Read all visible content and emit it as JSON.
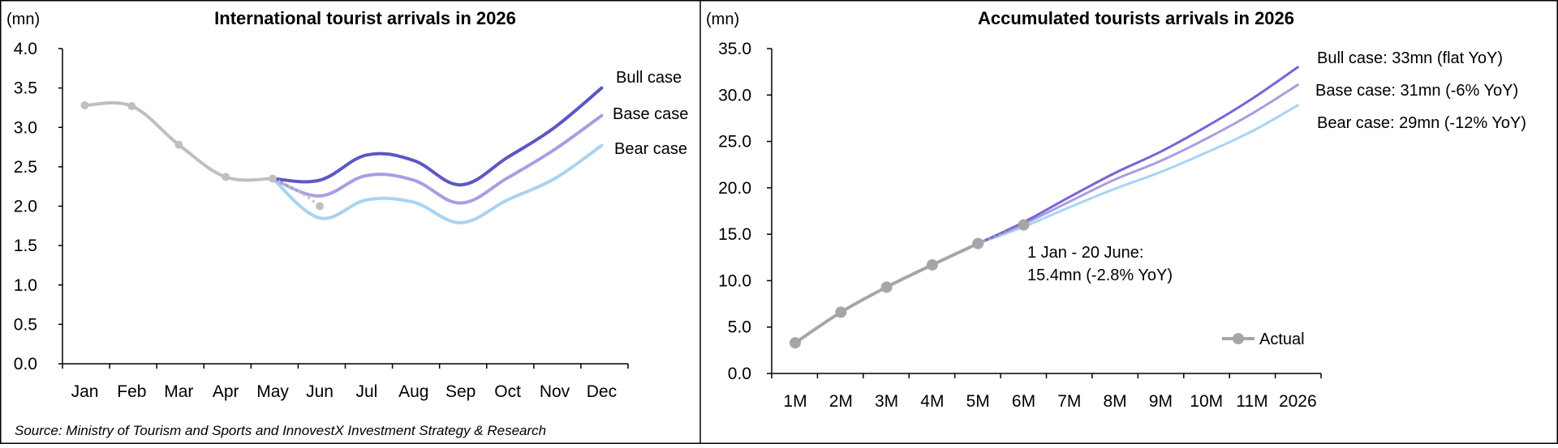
{
  "source": "Source: Ministry of Tourism and Sports and InnovestX Investment Strategy & Research",
  "colors": {
    "actual": "#bfbfbf",
    "actual_dark": "#a6a6a6",
    "bull": "#5b57c4",
    "base": "#a99de3",
    "bear": "#a8d4f2",
    "bull_right": "#7b63d8",
    "base_right": "#a99de3"
  },
  "chart_data": [
    {
      "type": "line",
      "title": "International tourist arrivals in 2026",
      "ylabel": "(mn)",
      "ylim": [
        0,
        4
      ],
      "yticks": [
        "0.0",
        "0.5",
        "1.0",
        "1.5",
        "2.0",
        "2.5",
        "3.0",
        "3.5",
        "4.0"
      ],
      "categories": [
        "Jan",
        "Feb",
        "Mar",
        "Apr",
        "May",
        "Jun",
        "Jul",
        "Aug",
        "Sep",
        "Oct",
        "Nov",
        "Dec"
      ],
      "series": [
        {
          "key": "actual",
          "values": [
            3.28,
            3.27,
            2.78,
            2.37,
            2.35,
            2.0,
            null,
            null,
            null,
            null,
            null,
            null
          ]
        },
        {
          "key": "bull",
          "name": "Bull case",
          "values": [
            null,
            null,
            null,
            null,
            2.35,
            2.33,
            2.65,
            2.58,
            2.27,
            2.62,
            3.0,
            3.5
          ]
        },
        {
          "key": "base",
          "name": "Base case",
          "values": [
            null,
            null,
            null,
            null,
            2.35,
            2.13,
            2.39,
            2.33,
            2.04,
            2.36,
            2.72,
            3.15
          ]
        },
        {
          "key": "bear",
          "name": "Bear case",
          "values": [
            null,
            null,
            null,
            null,
            2.35,
            1.85,
            2.08,
            2.05,
            1.79,
            2.08,
            2.35,
            2.77
          ]
        }
      ],
      "grid": false,
      "legend": "inline-right"
    },
    {
      "type": "line",
      "title": "Accumulated tourists arrivals in 2026",
      "ylabel": "(mn)",
      "ylim": [
        0,
        35
      ],
      "yticks": [
        "0.0",
        "5.0",
        "10.0",
        "15.0",
        "20.0",
        "25.0",
        "30.0",
        "35.0"
      ],
      "categories": [
        "1M",
        "2M",
        "3M",
        "4M",
        "5M",
        "6M",
        "7M",
        "8M",
        "9M",
        "10M",
        "11M",
        "2026"
      ],
      "series": [
        {
          "key": "actual",
          "name": "Actual",
          "values": [
            3.3,
            6.6,
            9.3,
            11.7,
            14.0,
            16.0,
            null,
            null,
            null,
            null,
            null,
            null
          ]
        },
        {
          "key": "bull",
          "name": "Bull case: 33mn (flat YoY)",
          "values": [
            null,
            null,
            null,
            null,
            14.0,
            16.3,
            19.0,
            21.6,
            23.9,
            26.6,
            29.6,
            33.0
          ]
        },
        {
          "key": "base",
          "name": "Base case: 31mn (-6% YoY)",
          "values": [
            null,
            null,
            null,
            null,
            14.0,
            16.1,
            18.5,
            20.9,
            22.9,
            25.3,
            28.0,
            31.1
          ]
        },
        {
          "key": "bear",
          "name": "Bear case: 29mn (-12% YoY)",
          "values": [
            null,
            null,
            null,
            null,
            14.0,
            15.8,
            17.9,
            19.9,
            21.7,
            23.8,
            26.1,
            28.9
          ]
        }
      ],
      "annotation": [
        "1 Jan - 20 June:",
        "15.4mn (-2.8% YoY)"
      ],
      "grid": false,
      "legend": "bottom-right"
    }
  ]
}
